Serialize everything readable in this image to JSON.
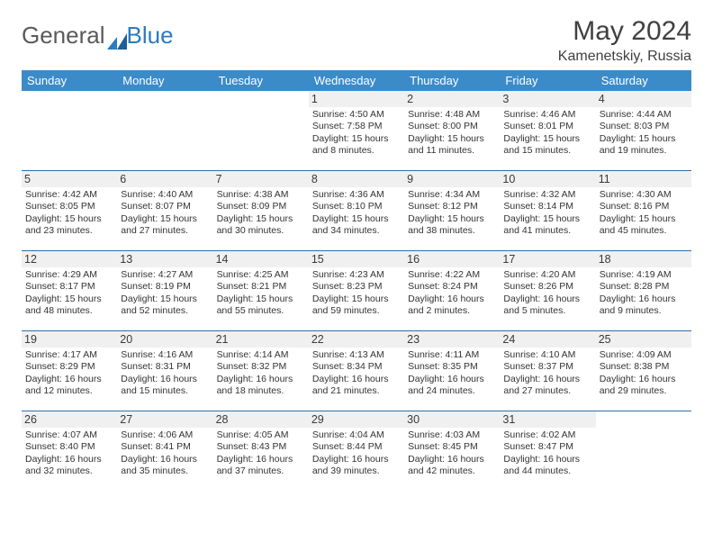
{
  "brand": {
    "part1": "General",
    "part2": "Blue"
  },
  "title": "May 2024",
  "location": "Kamenetskiy, Russia",
  "colors": {
    "header_bg": "#3b8bc9",
    "header_text": "#ffffff",
    "sep": "#2f6fa8",
    "daynum_bg": "#f0f0f0",
    "text": "#333333",
    "brand_gray": "#5a5a5a",
    "brand_blue": "#2b7bbf"
  },
  "weekdays": [
    "Sunday",
    "Monday",
    "Tuesday",
    "Wednesday",
    "Thursday",
    "Friday",
    "Saturday"
  ],
  "weeks": [
    [
      {
        "empty": true
      },
      {
        "empty": true
      },
      {
        "empty": true
      },
      {
        "day": "1",
        "sunrise": "Sunrise: 4:50 AM",
        "sunset": "Sunset: 7:58 PM",
        "dl1": "Daylight: 15 hours",
        "dl2": "and 8 minutes."
      },
      {
        "day": "2",
        "sunrise": "Sunrise: 4:48 AM",
        "sunset": "Sunset: 8:00 PM",
        "dl1": "Daylight: 15 hours",
        "dl2": "and 11 minutes."
      },
      {
        "day": "3",
        "sunrise": "Sunrise: 4:46 AM",
        "sunset": "Sunset: 8:01 PM",
        "dl1": "Daylight: 15 hours",
        "dl2": "and 15 minutes."
      },
      {
        "day": "4",
        "sunrise": "Sunrise: 4:44 AM",
        "sunset": "Sunset: 8:03 PM",
        "dl1": "Daylight: 15 hours",
        "dl2": "and 19 minutes."
      }
    ],
    [
      {
        "day": "5",
        "sunrise": "Sunrise: 4:42 AM",
        "sunset": "Sunset: 8:05 PM",
        "dl1": "Daylight: 15 hours",
        "dl2": "and 23 minutes."
      },
      {
        "day": "6",
        "sunrise": "Sunrise: 4:40 AM",
        "sunset": "Sunset: 8:07 PM",
        "dl1": "Daylight: 15 hours",
        "dl2": "and 27 minutes."
      },
      {
        "day": "7",
        "sunrise": "Sunrise: 4:38 AM",
        "sunset": "Sunset: 8:09 PM",
        "dl1": "Daylight: 15 hours",
        "dl2": "and 30 minutes."
      },
      {
        "day": "8",
        "sunrise": "Sunrise: 4:36 AM",
        "sunset": "Sunset: 8:10 PM",
        "dl1": "Daylight: 15 hours",
        "dl2": "and 34 minutes."
      },
      {
        "day": "9",
        "sunrise": "Sunrise: 4:34 AM",
        "sunset": "Sunset: 8:12 PM",
        "dl1": "Daylight: 15 hours",
        "dl2": "and 38 minutes."
      },
      {
        "day": "10",
        "sunrise": "Sunrise: 4:32 AM",
        "sunset": "Sunset: 8:14 PM",
        "dl1": "Daylight: 15 hours",
        "dl2": "and 41 minutes."
      },
      {
        "day": "11",
        "sunrise": "Sunrise: 4:30 AM",
        "sunset": "Sunset: 8:16 PM",
        "dl1": "Daylight: 15 hours",
        "dl2": "and 45 minutes."
      }
    ],
    [
      {
        "day": "12",
        "sunrise": "Sunrise: 4:29 AM",
        "sunset": "Sunset: 8:17 PM",
        "dl1": "Daylight: 15 hours",
        "dl2": "and 48 minutes."
      },
      {
        "day": "13",
        "sunrise": "Sunrise: 4:27 AM",
        "sunset": "Sunset: 8:19 PM",
        "dl1": "Daylight: 15 hours",
        "dl2": "and 52 minutes."
      },
      {
        "day": "14",
        "sunrise": "Sunrise: 4:25 AM",
        "sunset": "Sunset: 8:21 PM",
        "dl1": "Daylight: 15 hours",
        "dl2": "and 55 minutes."
      },
      {
        "day": "15",
        "sunrise": "Sunrise: 4:23 AM",
        "sunset": "Sunset: 8:23 PM",
        "dl1": "Daylight: 15 hours",
        "dl2": "and 59 minutes."
      },
      {
        "day": "16",
        "sunrise": "Sunrise: 4:22 AM",
        "sunset": "Sunset: 8:24 PM",
        "dl1": "Daylight: 16 hours",
        "dl2": "and 2 minutes."
      },
      {
        "day": "17",
        "sunrise": "Sunrise: 4:20 AM",
        "sunset": "Sunset: 8:26 PM",
        "dl1": "Daylight: 16 hours",
        "dl2": "and 5 minutes."
      },
      {
        "day": "18",
        "sunrise": "Sunrise: 4:19 AM",
        "sunset": "Sunset: 8:28 PM",
        "dl1": "Daylight: 16 hours",
        "dl2": "and 9 minutes."
      }
    ],
    [
      {
        "day": "19",
        "sunrise": "Sunrise: 4:17 AM",
        "sunset": "Sunset: 8:29 PM",
        "dl1": "Daylight: 16 hours",
        "dl2": "and 12 minutes."
      },
      {
        "day": "20",
        "sunrise": "Sunrise: 4:16 AM",
        "sunset": "Sunset: 8:31 PM",
        "dl1": "Daylight: 16 hours",
        "dl2": "and 15 minutes."
      },
      {
        "day": "21",
        "sunrise": "Sunrise: 4:14 AM",
        "sunset": "Sunset: 8:32 PM",
        "dl1": "Daylight: 16 hours",
        "dl2": "and 18 minutes."
      },
      {
        "day": "22",
        "sunrise": "Sunrise: 4:13 AM",
        "sunset": "Sunset: 8:34 PM",
        "dl1": "Daylight: 16 hours",
        "dl2": "and 21 minutes."
      },
      {
        "day": "23",
        "sunrise": "Sunrise: 4:11 AM",
        "sunset": "Sunset: 8:35 PM",
        "dl1": "Daylight: 16 hours",
        "dl2": "and 24 minutes."
      },
      {
        "day": "24",
        "sunrise": "Sunrise: 4:10 AM",
        "sunset": "Sunset: 8:37 PM",
        "dl1": "Daylight: 16 hours",
        "dl2": "and 27 minutes."
      },
      {
        "day": "25",
        "sunrise": "Sunrise: 4:09 AM",
        "sunset": "Sunset: 8:38 PM",
        "dl1": "Daylight: 16 hours",
        "dl2": "and 29 minutes."
      }
    ],
    [
      {
        "day": "26",
        "sunrise": "Sunrise: 4:07 AM",
        "sunset": "Sunset: 8:40 PM",
        "dl1": "Daylight: 16 hours",
        "dl2": "and 32 minutes."
      },
      {
        "day": "27",
        "sunrise": "Sunrise: 4:06 AM",
        "sunset": "Sunset: 8:41 PM",
        "dl1": "Daylight: 16 hours",
        "dl2": "and 35 minutes."
      },
      {
        "day": "28",
        "sunrise": "Sunrise: 4:05 AM",
        "sunset": "Sunset: 8:43 PM",
        "dl1": "Daylight: 16 hours",
        "dl2": "and 37 minutes."
      },
      {
        "day": "29",
        "sunrise": "Sunrise: 4:04 AM",
        "sunset": "Sunset: 8:44 PM",
        "dl1": "Daylight: 16 hours",
        "dl2": "and 39 minutes."
      },
      {
        "day": "30",
        "sunrise": "Sunrise: 4:03 AM",
        "sunset": "Sunset: 8:45 PM",
        "dl1": "Daylight: 16 hours",
        "dl2": "and 42 minutes."
      },
      {
        "day": "31",
        "sunrise": "Sunrise: 4:02 AM",
        "sunset": "Sunset: 8:47 PM",
        "dl1": "Daylight: 16 hours",
        "dl2": "and 44 minutes."
      },
      {
        "empty": true
      }
    ]
  ]
}
